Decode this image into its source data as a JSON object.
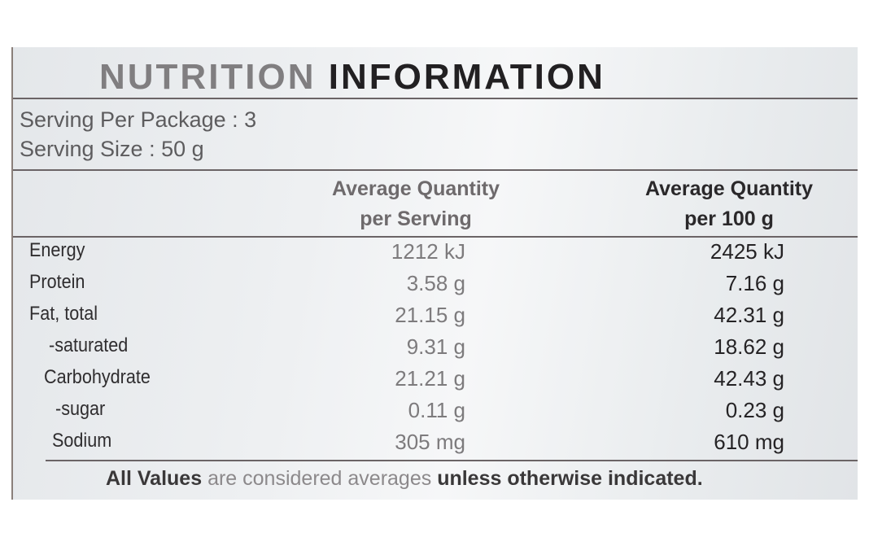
{
  "label": {
    "title_part1": "NUTRITION",
    "title_part2": "INFORMATION",
    "servings_per_package": "Serving Per Package : 3",
    "serving_size": "Serving Size : 50 g",
    "columns": [
      {
        "line1": "Average Quantity",
        "line2": "per Serving"
      },
      {
        "line1": "Average Quantity",
        "line2": "per 100 g"
      }
    ],
    "rows": [
      {
        "nutrient": "Energy",
        "per_serving": "1212 kJ",
        "per_100g": "2425 kJ"
      },
      {
        "nutrient": "Protein",
        "per_serving": "3.58 g",
        "per_100g": "7.16 g"
      },
      {
        "nutrient": "Fat, total",
        "per_serving": "21.15 g",
        "per_100g": "42.31 g"
      },
      {
        "nutrient": "-saturated",
        "per_serving": "9.31 g",
        "per_100g": "18.62 g"
      },
      {
        "nutrient": "Carbohydrate",
        "per_serving": "21.21 g",
        "per_100g": "42.43 g"
      },
      {
        "nutrient": "-sugar",
        "per_serving": "0.11 g",
        "per_100g": "0.23 g"
      },
      {
        "nutrient": "Sodium",
        "per_serving": "305 mg",
        "per_100g": "610 mg"
      }
    ],
    "footer_part1": "All Values",
    "footer_part2": " are considered averages",
    "footer_part3": " unless otherwise indicated."
  },
  "colors": {
    "panel": "#eceef0",
    "rule": "#6b6466",
    "ink": "#252325",
    "faded_ink": "#807e80"
  }
}
